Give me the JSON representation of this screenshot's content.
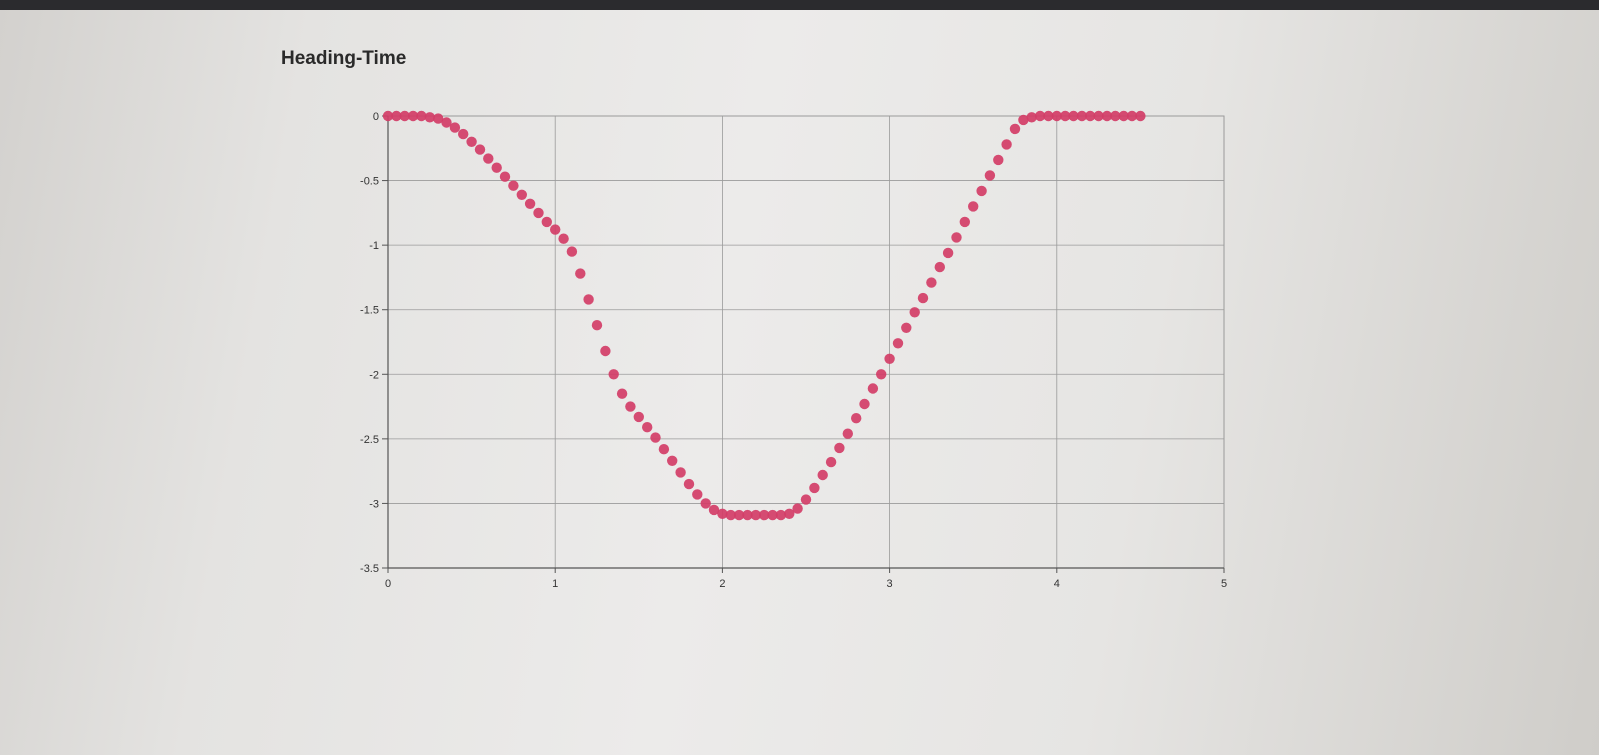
{
  "page": {
    "title": "Heading-Time"
  },
  "colors": {
    "series": "#d23d67",
    "grid": "#9a9a9a",
    "axis": "#555555",
    "background": "#ecebea"
  },
  "chart_data": {
    "type": "scatter",
    "title": "Heading-Time",
    "xlabel": "",
    "ylabel": "",
    "xlim": [
      0,
      5
    ],
    "ylim": [
      -3.5,
      0
    ],
    "x_ticks": [
      "0",
      "1",
      "2",
      "3",
      "4",
      "5"
    ],
    "y_ticks": [
      "0",
      "-0.5",
      "-1",
      "-1.5",
      "-2",
      "-2.5",
      "-3",
      "-3.5"
    ],
    "grid": true,
    "legend": "none",
    "series": [
      {
        "x": [
          0.0,
          0.05,
          0.1,
          0.15,
          0.2,
          0.25,
          0.3,
          0.35,
          0.4,
          0.45,
          0.5,
          0.55,
          0.6,
          0.65,
          0.7,
          0.75,
          0.8,
          0.85,
          0.9,
          0.95,
          1.0,
          1.05,
          1.1,
          1.15,
          1.2,
          1.25,
          1.3,
          1.35,
          1.4,
          1.45,
          1.5,
          1.55,
          1.6,
          1.65,
          1.7,
          1.75,
          1.8,
          1.85,
          1.9,
          1.95,
          2.0,
          2.05,
          2.1,
          2.15,
          2.2,
          2.25,
          2.3,
          2.35,
          2.4,
          2.45,
          2.5,
          2.55,
          2.6,
          2.65,
          2.7,
          2.75,
          2.8,
          2.85,
          2.9,
          2.95,
          3.0,
          3.05,
          3.1,
          3.15,
          3.2,
          3.25,
          3.3,
          3.35,
          3.4,
          3.45,
          3.5,
          3.55,
          3.6,
          3.65,
          3.7,
          3.75,
          3.8,
          3.85,
          3.9,
          3.95,
          4.0,
          4.05,
          4.1,
          4.15,
          4.2,
          4.25,
          4.3,
          4.35,
          4.4,
          4.45,
          4.5
        ],
        "y": [
          0.0,
          0.0,
          0.0,
          0.0,
          0.0,
          -0.01,
          -0.02,
          -0.05,
          -0.09,
          -0.14,
          -0.2,
          -0.26,
          -0.33,
          -0.4,
          -0.47,
          -0.54,
          -0.61,
          -0.68,
          -0.75,
          -0.82,
          -0.88,
          -0.95,
          -1.05,
          -1.22,
          -1.42,
          -1.62,
          -1.82,
          -2.0,
          -2.15,
          -2.25,
          -2.33,
          -2.41,
          -2.49,
          -2.58,
          -2.67,
          -2.76,
          -2.85,
          -2.93,
          -3.0,
          -3.05,
          -3.08,
          -3.09,
          -3.09,
          -3.09,
          -3.09,
          -3.09,
          -3.09,
          -3.09,
          -3.08,
          -3.04,
          -2.97,
          -2.88,
          -2.78,
          -2.68,
          -2.57,
          -2.46,
          -2.34,
          -2.23,
          -2.11,
          -2.0,
          -1.88,
          -1.76,
          -1.64,
          -1.52,
          -1.41,
          -1.29,
          -1.17,
          -1.06,
          -0.94,
          -0.82,
          -0.7,
          -0.58,
          -0.46,
          -0.34,
          -0.22,
          -0.1,
          -0.03,
          -0.01,
          0.0,
          0.0,
          0.0,
          0.0,
          0.0,
          0.0,
          0.0,
          0.0,
          0.0,
          0.0,
          0.0,
          0.0,
          0.0
        ]
      }
    ]
  }
}
